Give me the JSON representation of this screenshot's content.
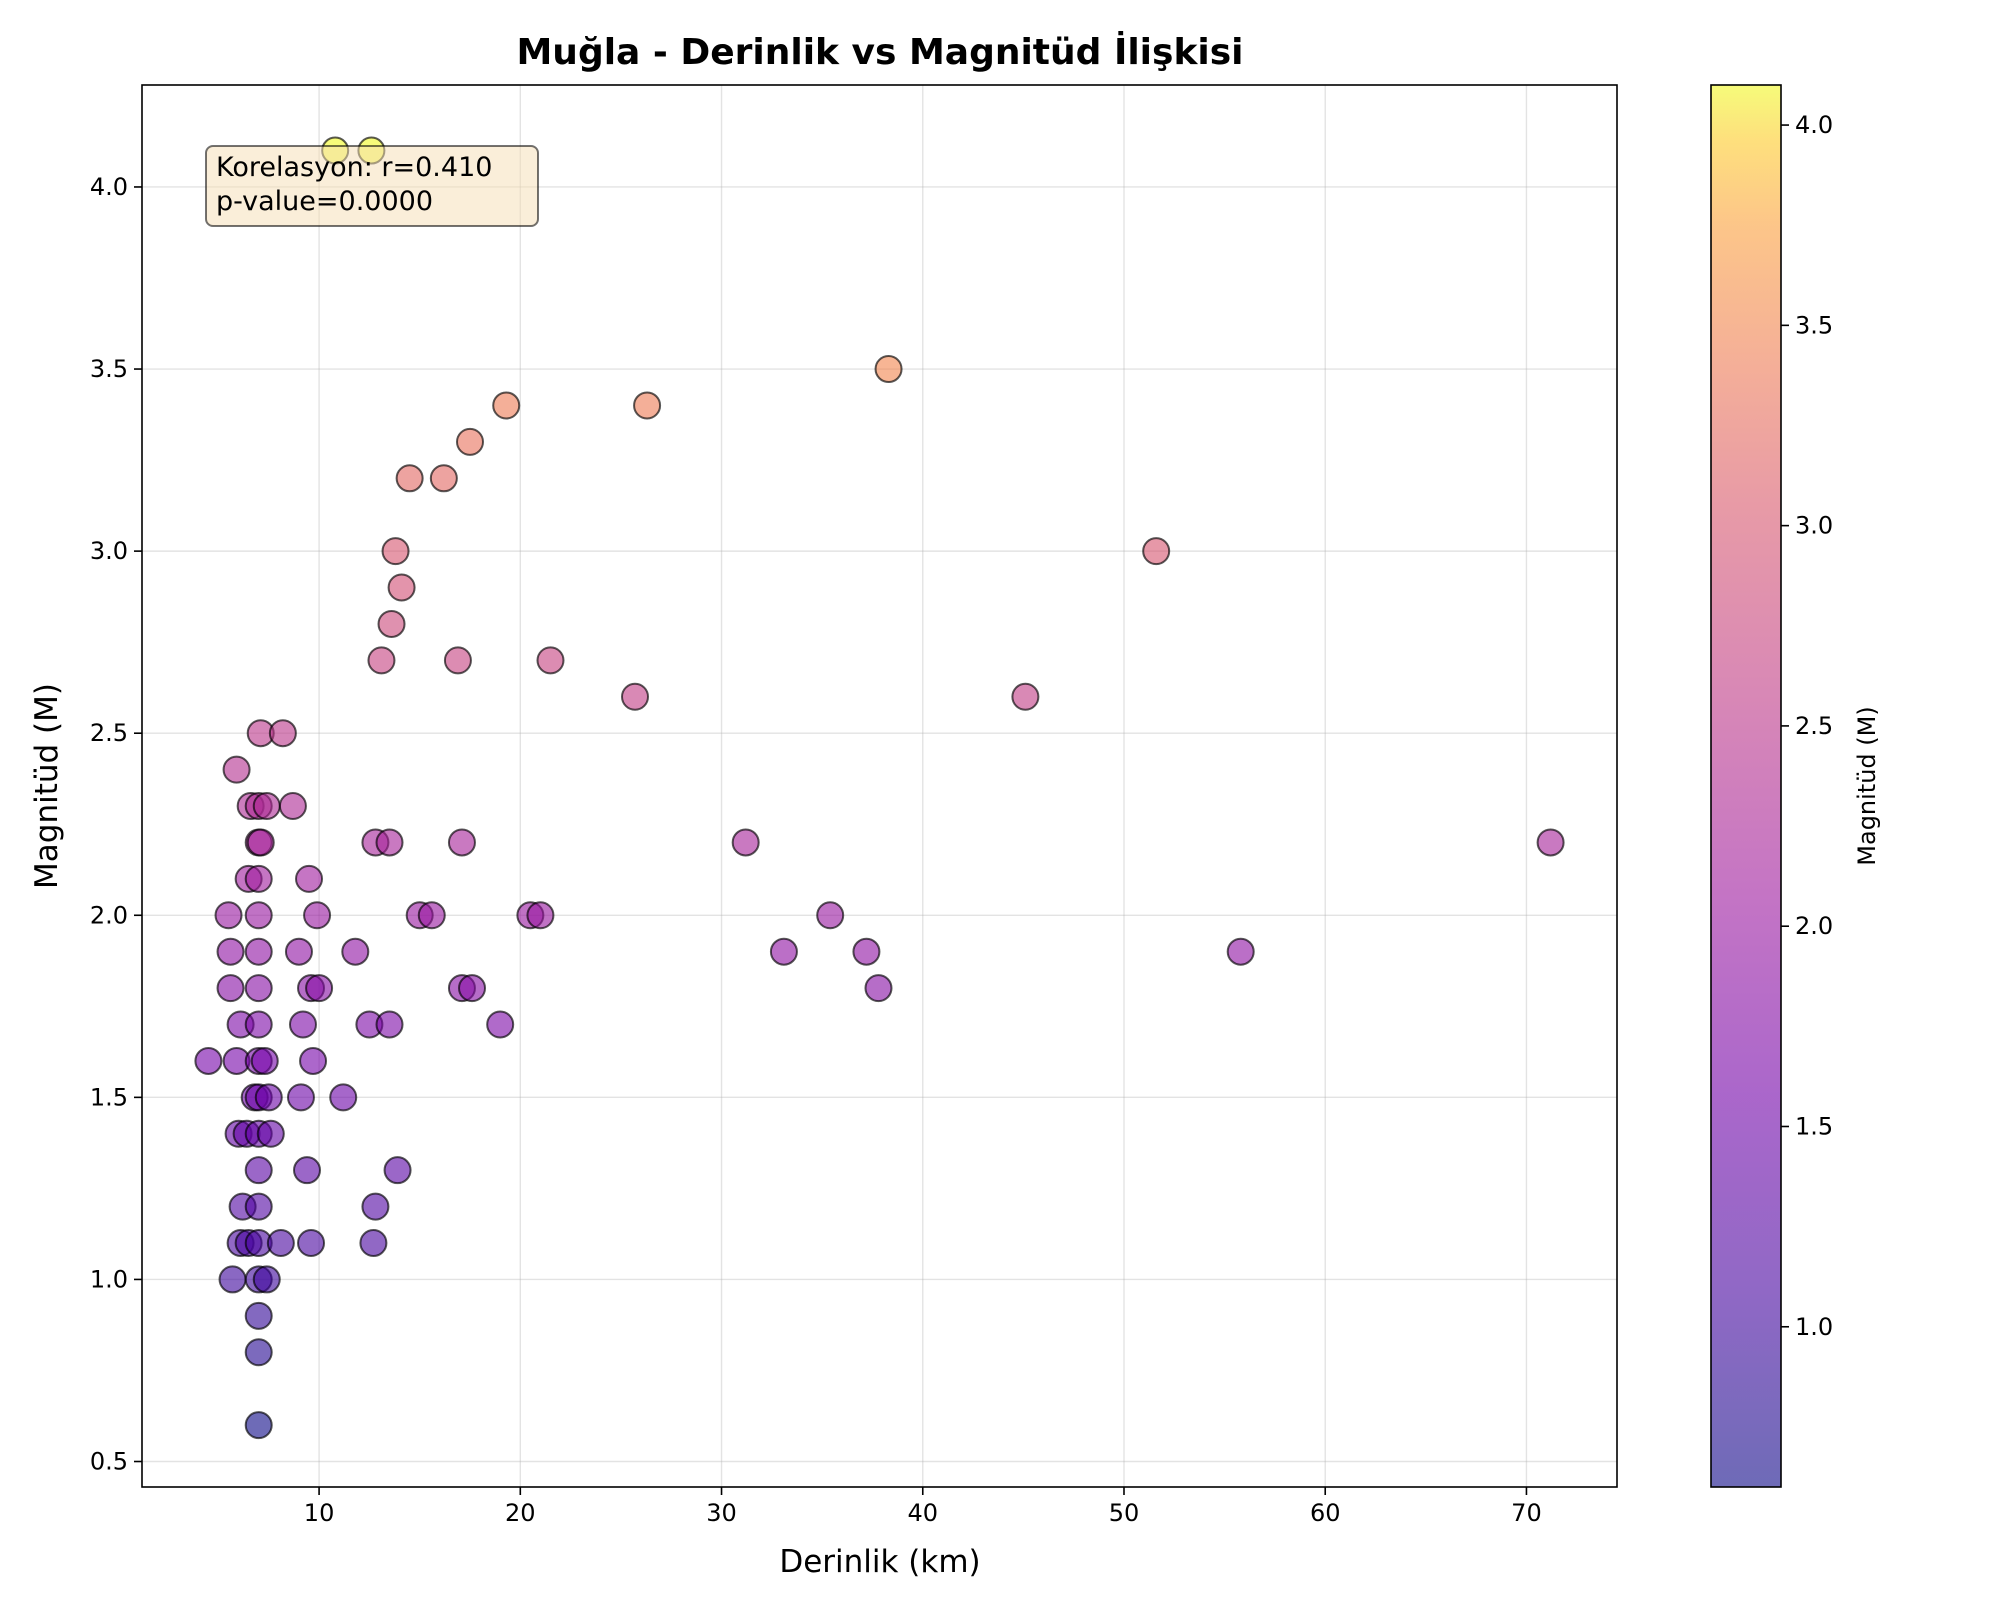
{
  "chart_data": {
    "type": "scatter",
    "title": "Muğla - Derinlik vs Magnitüd İlişkisi",
    "xlabel": "Derinlik (km)",
    "ylabel": "Magnitüd (M)",
    "xlim": [
      1.2,
      74.5
    ],
    "ylim": [
      0.43,
      4.28
    ],
    "xticks": [
      "10",
      "20",
      "30",
      "40",
      "50",
      "60",
      "70"
    ],
    "yticks": [
      "0.5",
      "1.0",
      "1.5",
      "2.0",
      "2.5",
      "3.0",
      "3.5",
      "4.0"
    ],
    "grid": true,
    "colormap": "plasma",
    "colorbar": {
      "label": "Magnitüd (M)",
      "range": [
        0.6,
        4.1
      ],
      "ticks": [
        "1.0",
        "1.5",
        "2.0",
        "2.5",
        "3.0",
        "3.5",
        "4.0"
      ]
    },
    "annotation": {
      "line1": "Korelasyon: r=0.410",
      "line2": "p-value=0.0000",
      "position": "top-left"
    },
    "points": [
      {
        "x": 10.8,
        "y": 4.1
      },
      {
        "x": 12.6,
        "y": 4.1
      },
      {
        "x": 38.3,
        "y": 3.5
      },
      {
        "x": 19.3,
        "y": 3.4
      },
      {
        "x": 26.3,
        "y": 3.4
      },
      {
        "x": 17.5,
        "y": 3.3
      },
      {
        "x": 14.5,
        "y": 3.2
      },
      {
        "x": 16.2,
        "y": 3.2
      },
      {
        "x": 13.8,
        "y": 3.0
      },
      {
        "x": 51.6,
        "y": 3.0
      },
      {
        "x": 14.1,
        "y": 2.9
      },
      {
        "x": 13.6,
        "y": 2.8
      },
      {
        "x": 13.1,
        "y": 2.7
      },
      {
        "x": 16.9,
        "y": 2.7
      },
      {
        "x": 21.5,
        "y": 2.7
      },
      {
        "x": 25.7,
        "y": 2.6
      },
      {
        "x": 45.1,
        "y": 2.6
      },
      {
        "x": 7.1,
        "y": 2.5
      },
      {
        "x": 8.2,
        "y": 2.5
      },
      {
        "x": 5.9,
        "y": 2.4
      },
      {
        "x": 6.6,
        "y": 2.3
      },
      {
        "x": 7.0,
        "y": 2.3
      },
      {
        "x": 7.4,
        "y": 2.3
      },
      {
        "x": 8.7,
        "y": 2.3
      },
      {
        "x": 7.0,
        "y": 2.2
      },
      {
        "x": 7.1,
        "y": 2.2
      },
      {
        "x": 12.8,
        "y": 2.2
      },
      {
        "x": 13.5,
        "y": 2.2
      },
      {
        "x": 17.1,
        "y": 2.2
      },
      {
        "x": 31.2,
        "y": 2.2
      },
      {
        "x": 71.2,
        "y": 2.2
      },
      {
        "x": 6.5,
        "y": 2.1
      },
      {
        "x": 7.0,
        "y": 2.1
      },
      {
        "x": 9.5,
        "y": 2.1
      },
      {
        "x": 5.5,
        "y": 2.0
      },
      {
        "x": 7.0,
        "y": 2.0
      },
      {
        "x": 9.9,
        "y": 2.0
      },
      {
        "x": 15.0,
        "y": 2.0
      },
      {
        "x": 15.6,
        "y": 2.0
      },
      {
        "x": 20.5,
        "y": 2.0
      },
      {
        "x": 21.0,
        "y": 2.0
      },
      {
        "x": 35.4,
        "y": 2.0
      },
      {
        "x": 5.6,
        "y": 1.9
      },
      {
        "x": 7.0,
        "y": 1.9
      },
      {
        "x": 9.0,
        "y": 1.9
      },
      {
        "x": 11.8,
        "y": 1.9
      },
      {
        "x": 33.1,
        "y": 1.9
      },
      {
        "x": 37.2,
        "y": 1.9
      },
      {
        "x": 55.8,
        "y": 1.9
      },
      {
        "x": 5.6,
        "y": 1.8
      },
      {
        "x": 7.0,
        "y": 1.8
      },
      {
        "x": 9.6,
        "y": 1.8
      },
      {
        "x": 10.0,
        "y": 1.8
      },
      {
        "x": 17.1,
        "y": 1.8
      },
      {
        "x": 17.6,
        "y": 1.8
      },
      {
        "x": 37.8,
        "y": 1.8
      },
      {
        "x": 6.1,
        "y": 1.7
      },
      {
        "x": 7.0,
        "y": 1.7
      },
      {
        "x": 9.2,
        "y": 1.7
      },
      {
        "x": 12.5,
        "y": 1.7
      },
      {
        "x": 13.5,
        "y": 1.7
      },
      {
        "x": 19.0,
        "y": 1.7
      },
      {
        "x": 4.5,
        "y": 1.6
      },
      {
        "x": 5.9,
        "y": 1.6
      },
      {
        "x": 7.0,
        "y": 1.6
      },
      {
        "x": 7.3,
        "y": 1.6
      },
      {
        "x": 9.7,
        "y": 1.6
      },
      {
        "x": 6.8,
        "y": 1.5
      },
      {
        "x": 7.0,
        "y": 1.5
      },
      {
        "x": 7.5,
        "y": 1.5
      },
      {
        "x": 9.1,
        "y": 1.5
      },
      {
        "x": 11.2,
        "y": 1.5
      },
      {
        "x": 6.0,
        "y": 1.4
      },
      {
        "x": 6.4,
        "y": 1.4
      },
      {
        "x": 7.0,
        "y": 1.4
      },
      {
        "x": 7.6,
        "y": 1.4
      },
      {
        "x": 7.0,
        "y": 1.3
      },
      {
        "x": 9.4,
        "y": 1.3
      },
      {
        "x": 13.9,
        "y": 1.3
      },
      {
        "x": 6.2,
        "y": 1.2
      },
      {
        "x": 7.0,
        "y": 1.2
      },
      {
        "x": 12.8,
        "y": 1.2
      },
      {
        "x": 6.1,
        "y": 1.1
      },
      {
        "x": 6.5,
        "y": 1.1
      },
      {
        "x": 7.0,
        "y": 1.1
      },
      {
        "x": 8.1,
        "y": 1.1
      },
      {
        "x": 9.6,
        "y": 1.1
      },
      {
        "x": 12.7,
        "y": 1.1
      },
      {
        "x": 5.7,
        "y": 1.0
      },
      {
        "x": 7.0,
        "y": 1.0
      },
      {
        "x": 7.4,
        "y": 1.0
      },
      {
        "x": 7.0,
        "y": 0.9
      },
      {
        "x": 7.0,
        "y": 0.8
      },
      {
        "x": 7.0,
        "y": 0.6
      }
    ]
  }
}
